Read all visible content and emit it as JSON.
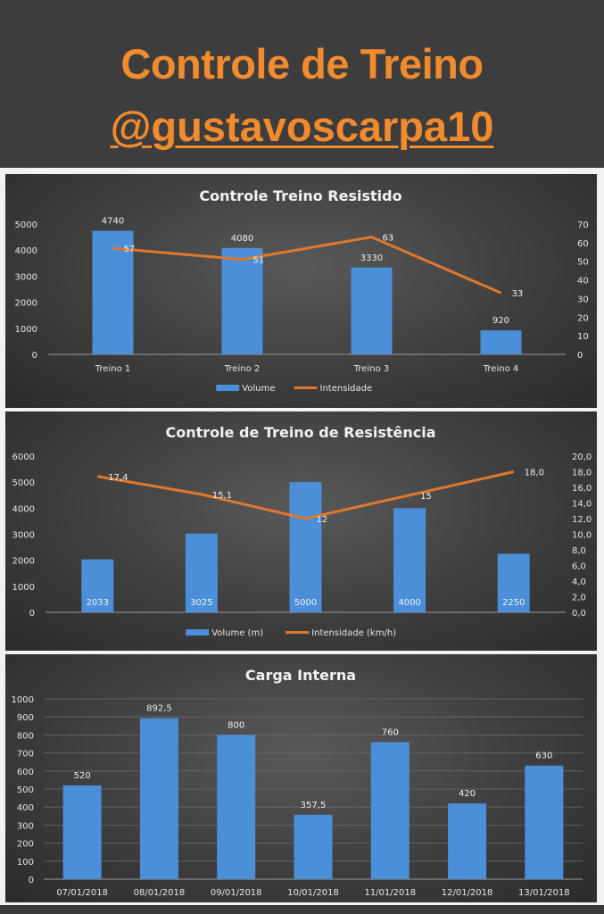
{
  "header": {
    "title": "Controle de Treino",
    "handle": "@gustavoscarpa10"
  },
  "colors": {
    "title_orange": "#f28a2e",
    "bar_blue": "#4a8fd8",
    "line_orange": "#e0782c",
    "panel_dark": "#3e3e3e"
  },
  "chart_data": [
    {
      "type": "bar",
      "title": "Controle Treino Resistido",
      "categories": [
        "Treino 1",
        "Treino 2",
        "Treino 3",
        "Treino 4"
      ],
      "series": [
        {
          "name": "Volume",
          "type": "bar",
          "axis": "left",
          "values": [
            4740,
            4080,
            3330,
            920
          ],
          "labels": [
            "4740",
            "4080",
            "3330",
            "920"
          ]
        },
        {
          "name": "Intensidade",
          "type": "line",
          "axis": "right",
          "values": [
            57,
            51,
            63,
            33
          ],
          "labels": [
            "57",
            "51",
            "63",
            "33"
          ]
        }
      ],
      "ylim_left": [
        0,
        5000
      ],
      "yticks_left": [
        "0",
        "1000",
        "2000",
        "3000",
        "4000",
        "5000"
      ],
      "ylim_right": [
        0,
        70
      ],
      "yticks_right": [
        "0",
        "10",
        "20",
        "30",
        "40",
        "50",
        "60",
        "70"
      ],
      "legend": "bottom",
      "grid": false
    },
    {
      "type": "bar",
      "title": "Controle de Treino de Resistência",
      "categories": [
        "",
        "",
        "",
        "",
        ""
      ],
      "series": [
        {
          "name": "Volume (m)",
          "type": "bar",
          "axis": "left",
          "values": [
            2033,
            3025,
            5000,
            4000,
            2250
          ],
          "labels": [
            "2033",
            "3025",
            "5000",
            "4000",
            "2250"
          ]
        },
        {
          "name": "Intensidade (km/h)",
          "type": "line",
          "axis": "right",
          "values": [
            17.4,
            15.1,
            12,
            15,
            18.0
          ],
          "labels": [
            "17,4",
            "15,1",
            "12",
            "15",
            "18,0"
          ]
        }
      ],
      "ylim_left": [
        0,
        6000
      ],
      "yticks_left": [
        "0",
        "1000",
        "2000",
        "3000",
        "4000",
        "5000",
        "6000"
      ],
      "ylim_right": [
        0,
        20
      ],
      "yticks_right": [
        "0,0",
        "2,0",
        "4,0",
        "6,0",
        "8,0",
        "10,0",
        "12,0",
        "14,0",
        "16,0",
        "18,0",
        "20,0"
      ],
      "legend": "bottom",
      "grid": false
    },
    {
      "type": "bar",
      "title": "Carga Interna",
      "categories": [
        "07/01/2018",
        "08/01/2018",
        "09/01/2018",
        "10/01/2018",
        "11/01/2018",
        "12/01/2018",
        "13/01/2018"
      ],
      "series": [
        {
          "name": "",
          "type": "bar",
          "axis": "left",
          "values": [
            520,
            892.5,
            800,
            357.5,
            760,
            420,
            630
          ],
          "labels": [
            "520",
            "892,5",
            "800",
            "357,5",
            "760",
            "420",
            "630"
          ]
        }
      ],
      "ylim_left": [
        0,
        1000
      ],
      "yticks_left": [
        "0",
        "100",
        "200",
        "300",
        "400",
        "500",
        "600",
        "700",
        "800",
        "900",
        "1000"
      ],
      "legend": "none",
      "grid": true
    }
  ]
}
